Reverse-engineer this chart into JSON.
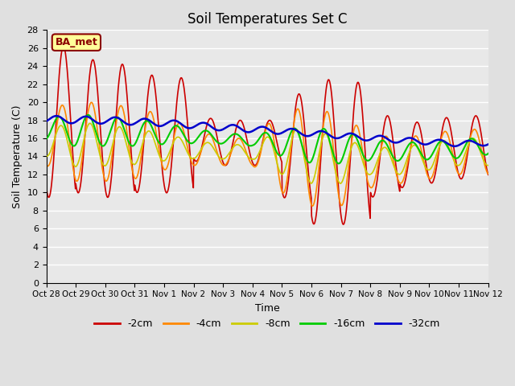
{
  "title": "Soil Temperatures Set C",
  "xlabel": "Time",
  "ylabel": "Soil Temperature (C)",
  "ylim": [
    0,
    28
  ],
  "yticks": [
    0,
    2,
    4,
    6,
    8,
    10,
    12,
    14,
    16,
    18,
    20,
    22,
    24,
    26,
    28
  ],
  "annotation": "BA_met",
  "annotation_color": "#8B0000",
  "annotation_bg": "#FFFF99",
  "bg_color": "#E0E0E0",
  "plot_bg": "#E8E8E8",
  "grid_color": "#FFFFFF",
  "line_colors": {
    "-2cm": "#CC0000",
    "-4cm": "#FF8800",
    "-8cm": "#CCCC00",
    "-16cm": "#00CC00",
    "-32cm": "#0000CC"
  },
  "xtick_labels": [
    "Oct 28",
    "Oct 29",
    "Oct 30",
    "Oct 31",
    "Nov 1",
    "Nov 2",
    "Nov 3",
    "Nov 4",
    "Nov 5",
    "Nov 6",
    "Nov 7",
    "Nov 8",
    "Nov 9",
    "Nov 10",
    "Nov 11",
    "Nov 12"
  ],
  "n_points": 1440
}
